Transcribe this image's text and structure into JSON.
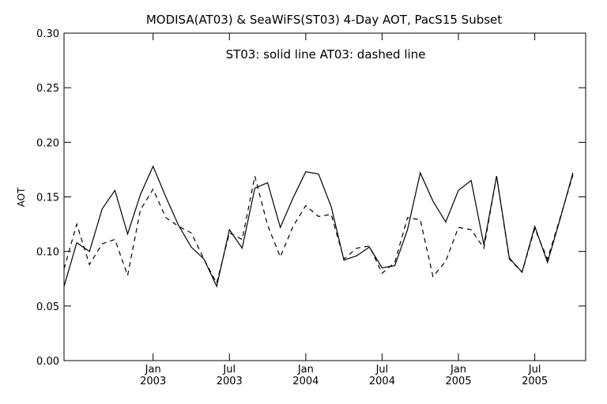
{
  "chart_data": {
    "type": "line",
    "title": "MODISA(AT03) & SeaWiFS(ST03) 4-Day AOT, PacS15 Subset",
    "annotation": "ST03: solid line   AT03: dashed line",
    "ylabel": "AOT",
    "xlabel": "",
    "ylim": [
      0.0,
      0.3
    ],
    "yticks": [
      "0.00",
      "0.05",
      "0.10",
      "0.15",
      "0.20",
      "0.25",
      "0.30"
    ],
    "xticks": [
      {
        "month": "Jan",
        "year": "2003",
        "index": 7
      },
      {
        "month": "Jul",
        "year": "2003",
        "index": 13
      },
      {
        "month": "Jan",
        "year": "2004",
        "index": 19
      },
      {
        "month": "Jul",
        "year": "2004",
        "index": 25
      },
      {
        "month": "Jan",
        "year": "2005",
        "index": 31
      },
      {
        "month": "Jul",
        "year": "2005",
        "index": 37
      }
    ],
    "x": [
      "2002-06",
      "2002-07",
      "2002-08",
      "2002-09",
      "2002-10",
      "2002-11",
      "2002-12",
      "2003-01",
      "2003-02",
      "2003-03",
      "2003-04",
      "2003-05",
      "2003-06",
      "2003-07",
      "2003-08",
      "2003-09",
      "2003-10",
      "2003-11",
      "2003-12",
      "2004-01",
      "2004-02",
      "2004-03",
      "2004-04",
      "2004-05",
      "2004-06",
      "2004-07",
      "2004-08",
      "2004-09",
      "2004-10",
      "2004-11",
      "2004-12",
      "2005-01",
      "2005-02",
      "2005-03",
      "2005-04",
      "2005-05",
      "2005-06",
      "2005-07",
      "2005-08",
      "2005-09",
      "2005-10"
    ],
    "xlim_index": [
      0,
      41
    ],
    "series": [
      {
        "name": "ST03",
        "style": "solid",
        "color": "#000000",
        "values": [
          0.068,
          0.108,
          0.1,
          0.139,
          0.156,
          0.116,
          0.152,
          0.178,
          0.15,
          0.124,
          0.104,
          0.093,
          0.068,
          0.12,
          0.103,
          0.158,
          0.163,
          0.122,
          0.149,
          0.173,
          0.171,
          0.141,
          0.092,
          0.096,
          0.104,
          0.085,
          0.087,
          0.12,
          0.172,
          0.146,
          0.127,
          0.156,
          0.165,
          0.106,
          0.169,
          0.094,
          0.081,
          0.123,
          0.09,
          0.13,
          0.172
        ]
      },
      {
        "name": "AT03",
        "style": "dashed",
        "color": "#000000",
        "values": [
          0.084,
          0.125,
          0.088,
          0.107,
          0.111,
          0.078,
          0.138,
          0.157,
          0.131,
          0.123,
          0.117,
          0.093,
          0.071,
          0.117,
          0.111,
          0.169,
          0.124,
          0.095,
          0.123,
          0.142,
          0.132,
          0.134,
          0.093,
          0.103,
          0.105,
          0.08,
          0.09,
          0.131,
          0.129,
          0.077,
          0.091,
          0.122,
          0.12,
          0.103,
          0.169,
          0.093,
          0.081,
          0.121,
          0.093,
          0.131,
          0.17
        ]
      }
    ],
    "grid": false,
    "legend": "none"
  }
}
